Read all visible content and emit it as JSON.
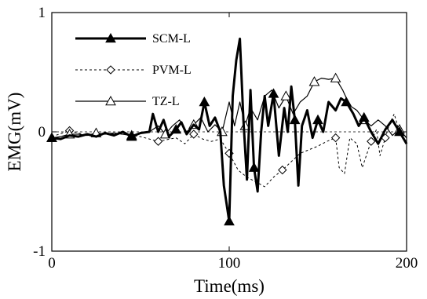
{
  "chart_data": {
    "type": "line",
    "title": "",
    "xlabel": "Time(ms)",
    "ylabel": "EMG(mV)",
    "xlim": [
      0,
      200
    ],
    "ylim": [
      -1,
      1
    ],
    "x_ticks": [
      0,
      100,
      200
    ],
    "y_ticks": [
      -1,
      0,
      1
    ],
    "x_tick_labels": [
      "0",
      "100",
      "200"
    ],
    "y_tick_labels": [
      "-1",
      "0",
      "1"
    ],
    "grid": false,
    "legend_position": "top-left",
    "series": [
      {
        "name": "SCM-L",
        "line_style": "solid-thick",
        "marker": "filled-triangle",
        "color": "#000000",
        "points": [
          [
            0,
            -0.05
          ],
          [
            5,
            -0.06
          ],
          [
            10,
            -0.03
          ],
          [
            15,
            -0.04
          ],
          [
            20,
            -0.02
          ],
          [
            25,
            -0.04
          ],
          [
            30,
            -0.01
          ],
          [
            35,
            -0.03
          ],
          [
            40,
            0.0
          ],
          [
            45,
            -0.04
          ],
          [
            50,
            -0.01
          ],
          [
            55,
            0.0
          ],
          [
            57,
            0.15
          ],
          [
            60,
            0.0
          ],
          [
            63,
            0.1
          ],
          [
            66,
            -0.04
          ],
          [
            70,
            0.02
          ],
          [
            73,
            0.08
          ],
          [
            76,
            -0.02
          ],
          [
            80,
            0.06
          ],
          [
            83,
            0.02
          ],
          [
            86,
            0.25
          ],
          [
            89,
            0.05
          ],
          [
            92,
            0.12
          ],
          [
            95,
            0.0
          ],
          [
            97,
            -0.45
          ],
          [
            100,
            -0.75
          ],
          [
            102,
            0.3
          ],
          [
            104,
            0.6
          ],
          [
            106,
            0.78
          ],
          [
            108,
            0.1
          ],
          [
            110,
            -0.4
          ],
          [
            112,
            0.35
          ],
          [
            114,
            -0.3
          ],
          [
            116,
            -0.5
          ],
          [
            118,
            0.0
          ],
          [
            120,
            0.3
          ],
          [
            122,
            0.05
          ],
          [
            125,
            0.32
          ],
          [
            128,
            -0.2
          ],
          [
            131,
            0.2
          ],
          [
            133,
            0.0
          ],
          [
            135,
            0.38
          ],
          [
            137,
            0.1
          ],
          [
            139,
            -0.45
          ],
          [
            141,
            0.05
          ],
          [
            144,
            0.18
          ],
          [
            147,
            -0.05
          ],
          [
            150,
            0.1
          ],
          [
            153,
            0.0
          ],
          [
            156,
            0.25
          ],
          [
            160,
            0.18
          ],
          [
            163,
            0.28
          ],
          [
            166,
            0.25
          ],
          [
            170,
            0.15
          ],
          [
            173,
            0.05
          ],
          [
            176,
            0.12
          ],
          [
            180,
            0.0
          ],
          [
            184,
            -0.1
          ],
          [
            188,
            0.02
          ],
          [
            192,
            0.1
          ],
          [
            196,
            0.0
          ],
          [
            200,
            -0.1
          ]
        ]
      },
      {
        "name": "PVM-L",
        "line_style": "dashed",
        "marker": "open-diamond",
        "color": "#000000",
        "points": [
          [
            0,
            -0.04
          ],
          [
            10,
            0.01
          ],
          [
            20,
            -0.03
          ],
          [
            30,
            -0.01
          ],
          [
            40,
            -0.02
          ],
          [
            50,
            -0.04
          ],
          [
            60,
            -0.08
          ],
          [
            70,
            -0.05
          ],
          [
            75,
            -0.1
          ],
          [
            80,
            -0.02
          ],
          [
            85,
            -0.06
          ],
          [
            90,
            -0.08
          ],
          [
            95,
            -0.06
          ],
          [
            100,
            -0.18
          ],
          [
            105,
            -0.32
          ],
          [
            110,
            -0.38
          ],
          [
            115,
            -0.42
          ],
          [
            120,
            -0.46
          ],
          [
            125,
            -0.38
          ],
          [
            130,
            -0.32
          ],
          [
            135,
            -0.25
          ],
          [
            140,
            -0.18
          ],
          [
            145,
            -0.15
          ],
          [
            150,
            -0.12
          ],
          [
            155,
            -0.08
          ],
          [
            160,
            -0.05
          ],
          [
            162,
            -0.3
          ],
          [
            165,
            -0.35
          ],
          [
            168,
            -0.05
          ],
          [
            172,
            -0.1
          ],
          [
            175,
            -0.3
          ],
          [
            180,
            -0.08
          ],
          [
            183,
            0.02
          ],
          [
            185,
            -0.2
          ],
          [
            188,
            -0.05
          ],
          [
            190,
            0.05
          ],
          [
            193,
            0.15
          ],
          [
            196,
            0.0
          ],
          [
            200,
            -0.05
          ]
        ]
      },
      {
        "name": "TZ-L",
        "line_style": "solid-thin",
        "marker": "open-triangle",
        "color": "#000000",
        "points": [
          [
            0,
            -0.05
          ],
          [
            5,
            -0.04
          ],
          [
            10,
            -0.02
          ],
          [
            15,
            -0.02
          ],
          [
            20,
            -0.03
          ],
          [
            25,
            -0.01
          ],
          [
            30,
            -0.02
          ],
          [
            35,
            -0.01
          ],
          [
            40,
            -0.02
          ],
          [
            45,
            -0.03
          ],
          [
            50,
            -0.01
          ],
          [
            55,
            0.0
          ],
          [
            60,
            0.05
          ],
          [
            64,
            -0.02
          ],
          [
            68,
            0.05
          ],
          [
            72,
            0.1
          ],
          [
            76,
            0.0
          ],
          [
            80,
            0.06
          ],
          [
            84,
            0.12
          ],
          [
            88,
            0.0
          ],
          [
            92,
            0.06
          ],
          [
            96,
            0.0
          ],
          [
            100,
            0.25
          ],
          [
            103,
            0.05
          ],
          [
            106,
            0.25
          ],
          [
            109,
            0.05
          ],
          [
            112,
            0.2
          ],
          [
            116,
            0.1
          ],
          [
            120,
            0.3
          ],
          [
            124,
            0.35
          ],
          [
            128,
            0.2
          ],
          [
            132,
            0.3
          ],
          [
            136,
            0.15
          ],
          [
            140,
            0.25
          ],
          [
            144,
            0.3
          ],
          [
            148,
            0.42
          ],
          [
            152,
            0.45
          ],
          [
            156,
            0.44
          ],
          [
            160,
            0.45
          ],
          [
            164,
            0.35
          ],
          [
            168,
            0.22
          ],
          [
            172,
            0.18
          ],
          [
            176,
            0.1
          ],
          [
            180,
            0.05
          ],
          [
            184,
            0.1
          ],
          [
            188,
            0.05
          ],
          [
            192,
            -0.03
          ],
          [
            196,
            0.02
          ],
          [
            200,
            -0.05
          ]
        ]
      }
    ],
    "markers_at": {
      "SCM-L": [
        0,
        9,
        16,
        21,
        26,
        33,
        38,
        43,
        48,
        53,
        56,
        61
      ],
      "PVM-L": [
        1,
        6,
        9,
        13,
        19,
        25,
        31,
        34
      ],
      "TZ-L": [
        0,
        2,
        5,
        9,
        13,
        17,
        21,
        25,
        31,
        35,
        38,
        42,
        47
      ]
    }
  }
}
